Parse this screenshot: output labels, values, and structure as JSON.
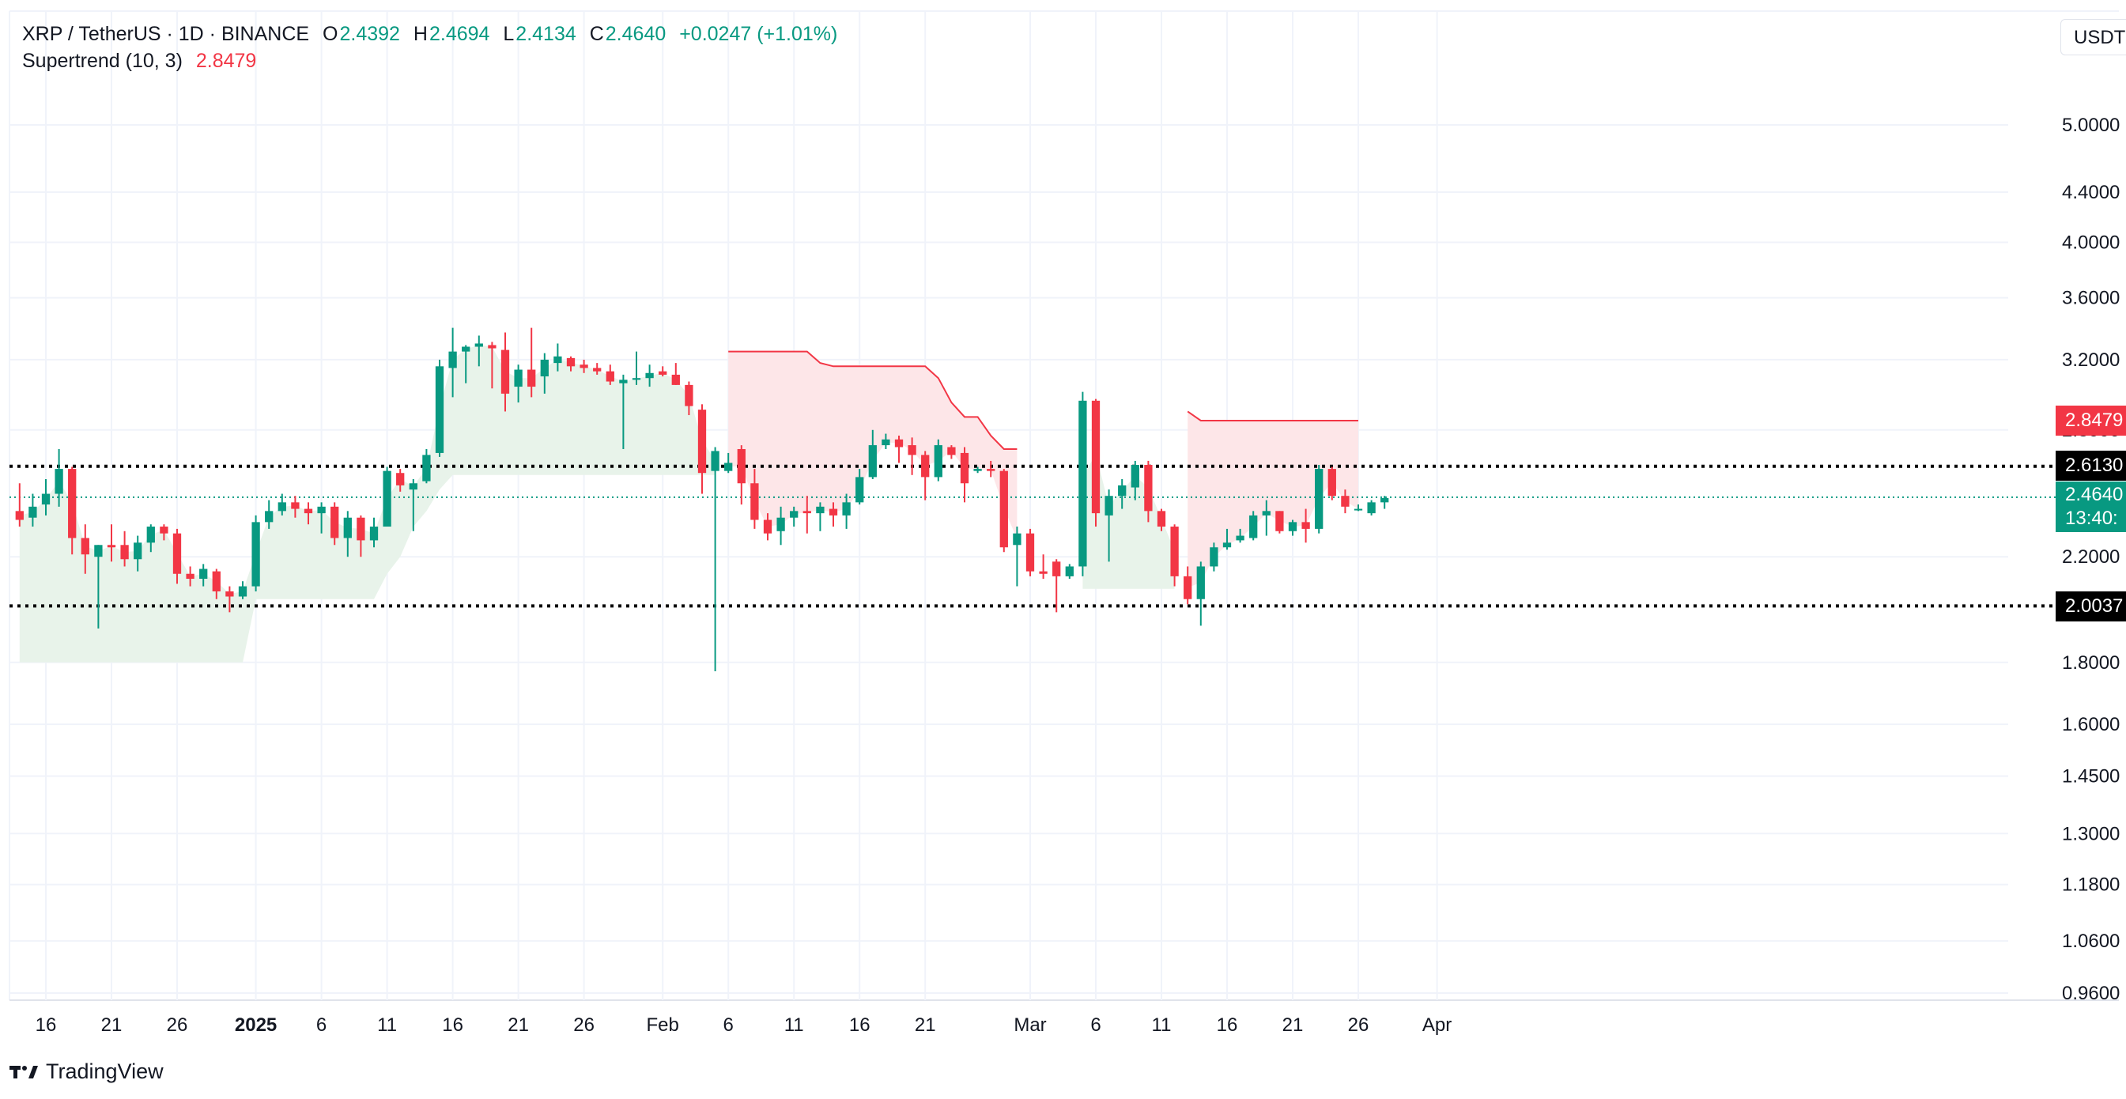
{
  "header": {
    "symbol": "XRP / TetherUS · 1D · BINANCE",
    "open_label": "O",
    "open": "2.4392",
    "high_label": "H",
    "high": "2.4694",
    "low_label": "L",
    "low": "2.4134",
    "close_label": "C",
    "close": "2.4640",
    "change": "+0.0247 (+1.01%)",
    "indicator_name": "Supertrend (10, 3)",
    "indicator_value": "2.8479"
  },
  "currency": "USDT",
  "price_labels": {
    "supertrend": "2.8479",
    "level_high": "2.6130",
    "last_price": "2.4640",
    "countdown": "13:40:",
    "level_low": "2.0037"
  },
  "brand": "TradingView",
  "colors": {
    "up": "#089981",
    "down": "#f23645",
    "up_fill": "#e8f3ea",
    "down_fill": "#fde6e8",
    "grid": "#f0f3fa"
  },
  "chart_data": {
    "type": "candlestick",
    "scale": "log",
    "y_ticks": [
      "5.0000",
      "4.4000",
      "4.0000",
      "3.6000",
      "3.2000",
      "2.8000",
      "2.2000",
      "1.8000",
      "1.6000",
      "1.4500",
      "1.3000",
      "1.1800",
      "1.0600",
      "0.9600"
    ],
    "x_ticks": [
      {
        "date": "2024-12-16",
        "label": "16"
      },
      {
        "date": "2024-12-21",
        "label": "21"
      },
      {
        "date": "2024-12-26",
        "label": "26"
      },
      {
        "date": "2025-01-01",
        "label": "2025",
        "bold": true
      },
      {
        "date": "2025-01-06",
        "label": "6"
      },
      {
        "date": "2025-01-11",
        "label": "11"
      },
      {
        "date": "2025-01-16",
        "label": "16"
      },
      {
        "date": "2025-01-21",
        "label": "21"
      },
      {
        "date": "2025-01-26",
        "label": "26"
      },
      {
        "date": "2025-02-01",
        "label": "Feb"
      },
      {
        "date": "2025-02-06",
        "label": "6"
      },
      {
        "date": "2025-02-11",
        "label": "11"
      },
      {
        "date": "2025-02-16",
        "label": "16"
      },
      {
        "date": "2025-02-21",
        "label": "21"
      },
      {
        "date": "2025-03-01",
        "label": "Mar"
      },
      {
        "date": "2025-03-06",
        "label": "6"
      },
      {
        "date": "2025-03-11",
        "label": "11"
      },
      {
        "date": "2025-03-16",
        "label": "16"
      },
      {
        "date": "2025-03-21",
        "label": "21"
      },
      {
        "date": "2025-03-26",
        "label": "26"
      },
      {
        "date": "2025-04-01",
        "label": "Apr"
      }
    ],
    "horizontal_levels": [
      2.613,
      2.0037
    ],
    "last_price": 2.464,
    "candles": [
      {
        "date": "2024-12-14",
        "o": 2.4,
        "h": 2.53,
        "l": 2.33,
        "c": 2.36
      },
      {
        "date": "2024-12-15",
        "o": 2.37,
        "h": 2.48,
        "l": 2.33,
        "c": 2.42
      },
      {
        "date": "2024-12-16",
        "o": 2.43,
        "h": 2.55,
        "l": 2.38,
        "c": 2.48
      },
      {
        "date": "2024-12-17",
        "o": 2.48,
        "h": 2.7,
        "l": 2.42,
        "c": 2.6
      },
      {
        "date": "2024-12-18",
        "o": 2.6,
        "h": 2.61,
        "l": 2.21,
        "c": 2.28
      },
      {
        "date": "2024-12-19",
        "o": 2.28,
        "h": 2.34,
        "l": 2.13,
        "c": 2.21
      },
      {
        "date": "2024-12-20",
        "o": 2.2,
        "h": 2.25,
        "l": 1.92,
        "c": 2.25
      },
      {
        "date": "2024-12-21",
        "o": 2.25,
        "h": 2.34,
        "l": 2.18,
        "c": 2.24
      },
      {
        "date": "2024-12-22",
        "o": 2.25,
        "h": 2.31,
        "l": 2.16,
        "c": 2.19
      },
      {
        "date": "2024-12-23",
        "o": 2.19,
        "h": 2.29,
        "l": 2.14,
        "c": 2.26
      },
      {
        "date": "2024-12-24",
        "o": 2.26,
        "h": 2.34,
        "l": 2.22,
        "c": 2.33
      },
      {
        "date": "2024-12-25",
        "o": 2.33,
        "h": 2.34,
        "l": 2.27,
        "c": 2.3
      },
      {
        "date": "2024-12-26",
        "o": 2.3,
        "h": 2.32,
        "l": 2.09,
        "c": 2.13
      },
      {
        "date": "2024-12-27",
        "o": 2.13,
        "h": 2.16,
        "l": 2.08,
        "c": 2.11
      },
      {
        "date": "2024-12-28",
        "o": 2.11,
        "h": 2.17,
        "l": 2.08,
        "c": 2.15
      },
      {
        "date": "2024-12-29",
        "o": 2.14,
        "h": 2.15,
        "l": 2.03,
        "c": 2.06
      },
      {
        "date": "2024-12-30",
        "o": 2.06,
        "h": 2.08,
        "l": 1.98,
        "c": 2.04
      },
      {
        "date": "2024-12-31",
        "o": 2.04,
        "h": 2.1,
        "l": 2.03,
        "c": 2.08
      },
      {
        "date": "2025-01-01",
        "o": 2.08,
        "h": 2.38,
        "l": 2.06,
        "c": 2.35
      },
      {
        "date": "2025-01-02",
        "o": 2.35,
        "h": 2.45,
        "l": 2.32,
        "c": 2.4
      },
      {
        "date": "2025-01-03",
        "o": 2.4,
        "h": 2.48,
        "l": 2.38,
        "c": 2.44
      },
      {
        "date": "2025-01-04",
        "o": 2.44,
        "h": 2.47,
        "l": 2.37,
        "c": 2.41
      },
      {
        "date": "2025-01-05",
        "o": 2.41,
        "h": 2.44,
        "l": 2.34,
        "c": 2.39
      },
      {
        "date": "2025-01-06",
        "o": 2.39,
        "h": 2.44,
        "l": 2.3,
        "c": 2.42
      },
      {
        "date": "2025-01-07",
        "o": 2.42,
        "h": 2.44,
        "l": 2.25,
        "c": 2.28
      },
      {
        "date": "2025-01-08",
        "o": 2.28,
        "h": 2.4,
        "l": 2.2,
        "c": 2.37
      },
      {
        "date": "2025-01-09",
        "o": 2.37,
        "h": 2.38,
        "l": 2.2,
        "c": 2.27
      },
      {
        "date": "2025-01-10",
        "o": 2.27,
        "h": 2.37,
        "l": 2.24,
        "c": 2.33
      },
      {
        "date": "2025-01-11",
        "o": 2.33,
        "h": 2.61,
        "l": 2.33,
        "c": 2.59
      },
      {
        "date": "2025-01-12",
        "o": 2.58,
        "h": 2.6,
        "l": 2.49,
        "c": 2.52
      },
      {
        "date": "2025-01-13",
        "o": 2.5,
        "h": 2.55,
        "l": 2.31,
        "c": 2.53
      },
      {
        "date": "2025-01-14",
        "o": 2.54,
        "h": 2.7,
        "l": 2.53,
        "c": 2.67
      },
      {
        "date": "2025-01-15",
        "o": 2.68,
        "h": 3.2,
        "l": 2.66,
        "c": 3.16
      },
      {
        "date": "2025-01-16",
        "o": 3.15,
        "h": 3.4,
        "l": 2.98,
        "c": 3.25
      },
      {
        "date": "2025-01-17",
        "o": 3.25,
        "h": 3.29,
        "l": 3.06,
        "c": 3.28
      },
      {
        "date": "2025-01-18",
        "o": 3.28,
        "h": 3.35,
        "l": 3.16,
        "c": 3.3
      },
      {
        "date": "2025-01-19",
        "o": 3.29,
        "h": 3.31,
        "l": 3.03,
        "c": 3.27
      },
      {
        "date": "2025-01-20",
        "o": 3.26,
        "h": 3.37,
        "l": 2.9,
        "c": 3.0
      },
      {
        "date": "2025-01-21",
        "o": 3.04,
        "h": 3.17,
        "l": 2.95,
        "c": 3.14
      },
      {
        "date": "2025-01-22",
        "o": 3.14,
        "h": 3.4,
        "l": 2.98,
        "c": 3.04
      },
      {
        "date": "2025-01-23",
        "o": 3.1,
        "h": 3.24,
        "l": 3.0,
        "c": 3.2
      },
      {
        "date": "2025-01-24",
        "o": 3.18,
        "h": 3.3,
        "l": 3.13,
        "c": 3.22
      },
      {
        "date": "2025-01-25",
        "o": 3.21,
        "h": 3.22,
        "l": 3.13,
        "c": 3.16
      },
      {
        "date": "2025-01-26",
        "o": 3.17,
        "h": 3.2,
        "l": 3.12,
        "c": 3.15
      },
      {
        "date": "2025-01-27",
        "o": 3.15,
        "h": 3.18,
        "l": 3.11,
        "c": 3.13
      },
      {
        "date": "2025-01-28",
        "o": 3.13,
        "h": 3.17,
        "l": 3.05,
        "c": 3.07
      },
      {
        "date": "2025-01-29",
        "o": 3.06,
        "h": 3.11,
        "l": 2.7,
        "c": 3.08
      },
      {
        "date": "2025-01-30",
        "o": 3.08,
        "h": 3.25,
        "l": 3.05,
        "c": 3.09
      },
      {
        "date": "2025-01-31",
        "o": 3.09,
        "h": 3.17,
        "l": 3.04,
        "c": 3.12
      },
      {
        "date": "2025-02-01",
        "o": 3.13,
        "h": 3.16,
        "l": 3.1,
        "c": 3.11
      },
      {
        "date": "2025-02-02",
        "o": 3.11,
        "h": 3.18,
        "l": 3.05,
        "c": 3.05
      },
      {
        "date": "2025-02-03",
        "o": 3.05,
        "h": 3.07,
        "l": 2.88,
        "c": 2.93
      },
      {
        "date": "2025-02-04",
        "o": 2.91,
        "h": 2.94,
        "l": 2.48,
        "c": 2.58
      },
      {
        "date": "2025-02-05",
        "o": 2.59,
        "h": 2.71,
        "l": 1.77,
        "c": 2.69
      },
      {
        "date": "2025-02-06",
        "o": 2.59,
        "h": 2.68,
        "l": 2.58,
        "c": 2.63
      },
      {
        "date": "2025-02-07",
        "o": 2.7,
        "h": 2.72,
        "l": 2.43,
        "c": 2.53
      },
      {
        "date": "2025-02-08",
        "o": 2.53,
        "h": 2.6,
        "l": 2.32,
        "c": 2.36
      },
      {
        "date": "2025-02-09",
        "o": 2.36,
        "h": 2.39,
        "l": 2.27,
        "c": 2.3
      },
      {
        "date": "2025-02-10",
        "o": 2.31,
        "h": 2.42,
        "l": 2.25,
        "c": 2.37
      },
      {
        "date": "2025-02-11",
        "o": 2.37,
        "h": 2.42,
        "l": 2.33,
        "c": 2.4
      },
      {
        "date": "2025-02-12",
        "o": 2.4,
        "h": 2.47,
        "l": 2.3,
        "c": 2.39
      },
      {
        "date": "2025-02-13",
        "o": 2.39,
        "h": 2.44,
        "l": 2.31,
        "c": 2.42
      },
      {
        "date": "2025-02-14",
        "o": 2.41,
        "h": 2.44,
        "l": 2.33,
        "c": 2.38
      },
      {
        "date": "2025-02-15",
        "o": 2.38,
        "h": 2.48,
        "l": 2.32,
        "c": 2.44
      },
      {
        "date": "2025-02-16",
        "o": 2.44,
        "h": 2.6,
        "l": 2.43,
        "c": 2.56
      },
      {
        "date": "2025-02-17",
        "o": 2.56,
        "h": 2.8,
        "l": 2.55,
        "c": 2.72
      },
      {
        "date": "2025-02-18",
        "o": 2.72,
        "h": 2.78,
        "l": 2.7,
        "c": 2.75
      },
      {
        "date": "2025-02-19",
        "o": 2.75,
        "h": 2.77,
        "l": 2.63,
        "c": 2.71
      },
      {
        "date": "2025-02-20",
        "o": 2.72,
        "h": 2.76,
        "l": 2.57,
        "c": 2.67
      },
      {
        "date": "2025-02-21",
        "o": 2.67,
        "h": 2.69,
        "l": 2.45,
        "c": 2.56
      },
      {
        "date": "2025-02-22",
        "o": 2.56,
        "h": 2.75,
        "l": 2.54,
        "c": 2.72
      },
      {
        "date": "2025-02-23",
        "o": 2.71,
        "h": 2.72,
        "l": 2.65,
        "c": 2.67
      },
      {
        "date": "2025-02-24",
        "o": 2.68,
        "h": 2.71,
        "l": 2.44,
        "c": 2.53
      },
      {
        "date": "2025-02-25",
        "o": 2.59,
        "h": 2.61,
        "l": 2.58,
        "c": 2.6
      },
      {
        "date": "2025-02-26",
        "o": 2.6,
        "h": 2.64,
        "l": 2.56,
        "c": 2.59
      },
      {
        "date": "2025-02-27",
        "o": 2.59,
        "h": 2.6,
        "l": 2.22,
        "c": 2.24
      },
      {
        "date": "2025-02-28",
        "o": 2.25,
        "h": 2.33,
        "l": 2.08,
        "c": 2.3
      },
      {
        "date": "2025-03-01",
        "o": 2.3,
        "h": 2.32,
        "l": 2.12,
        "c": 2.14
      },
      {
        "date": "2025-03-02",
        "o": 2.14,
        "h": 2.21,
        "l": 2.11,
        "c": 2.13
      },
      {
        "date": "2025-03-03",
        "o": 2.18,
        "h": 2.19,
        "l": 1.98,
        "c": 2.12
      },
      {
        "date": "2025-03-04",
        "o": 2.12,
        "h": 2.17,
        "l": 2.11,
        "c": 2.16
      },
      {
        "date": "2025-03-05",
        "o": 2.16,
        "h": 3.01,
        "l": 2.12,
        "c": 2.96
      },
      {
        "date": "2025-03-06",
        "o": 2.96,
        "h": 2.97,
        "l": 2.33,
        "c": 2.39
      },
      {
        "date": "2025-03-07",
        "o": 2.38,
        "h": 2.5,
        "l": 2.18,
        "c": 2.47
      },
      {
        "date": "2025-03-08",
        "o": 2.47,
        "h": 2.55,
        "l": 2.41,
        "c": 2.52
      },
      {
        "date": "2025-03-09",
        "o": 2.51,
        "h": 2.64,
        "l": 2.45,
        "c": 2.62
      },
      {
        "date": "2025-03-10",
        "o": 2.62,
        "h": 2.64,
        "l": 2.35,
        "c": 2.4
      },
      {
        "date": "2025-03-11",
        "o": 2.4,
        "h": 2.41,
        "l": 2.31,
        "c": 2.33
      },
      {
        "date": "2025-03-12",
        "o": 2.33,
        "h": 2.34,
        "l": 2.08,
        "c": 2.12
      },
      {
        "date": "2025-03-13",
        "o": 2.12,
        "h": 2.16,
        "l": 2.01,
        "c": 2.03
      },
      {
        "date": "2025-03-14",
        "o": 2.03,
        "h": 2.18,
        "l": 1.93,
        "c": 2.16
      },
      {
        "date": "2025-03-15",
        "o": 2.16,
        "h": 2.26,
        "l": 2.14,
        "c": 2.24
      },
      {
        "date": "2025-03-16",
        "o": 2.24,
        "h": 2.32,
        "l": 2.23,
        "c": 2.26
      },
      {
        "date": "2025-03-17",
        "o": 2.27,
        "h": 2.32,
        "l": 2.26,
        "c": 2.29
      },
      {
        "date": "2025-03-18",
        "o": 2.28,
        "h": 2.4,
        "l": 2.27,
        "c": 2.38
      },
      {
        "date": "2025-03-19",
        "o": 2.38,
        "h": 2.45,
        "l": 2.29,
        "c": 2.4
      },
      {
        "date": "2025-03-20",
        "o": 2.4,
        "h": 2.4,
        "l": 2.3,
        "c": 2.31
      },
      {
        "date": "2025-03-21",
        "o": 2.31,
        "h": 2.36,
        "l": 2.29,
        "c": 2.35
      },
      {
        "date": "2025-03-22",
        "o": 2.35,
        "h": 2.41,
        "l": 2.26,
        "c": 2.32
      },
      {
        "date": "2025-03-23",
        "o": 2.32,
        "h": 2.62,
        "l": 2.3,
        "c": 2.6
      },
      {
        "date": "2025-03-24",
        "o": 2.6,
        "h": 2.61,
        "l": 2.45,
        "c": 2.47
      },
      {
        "date": "2025-03-25",
        "o": 2.47,
        "h": 2.5,
        "l": 2.39,
        "c": 2.42
      },
      {
        "date": "2025-03-26",
        "o": 2.41,
        "h": 2.43,
        "l": 2.4,
        "c": 2.41
      },
      {
        "date": "2025-03-27",
        "o": 2.39,
        "h": 2.45,
        "l": 2.38,
        "c": 2.44
      },
      {
        "date": "2025-03-28",
        "o": 2.44,
        "h": 2.47,
        "l": 2.41,
        "c": 2.46
      }
    ],
    "supertrend": [
      {
        "from": "2024-12-14",
        "to": "2024-12-31",
        "trend": "up",
        "value": 1.8
      },
      {
        "from": "2025-01-01",
        "to": "2025-01-10",
        "trend": "up",
        "value": 2.03
      },
      {
        "from": "2025-01-11",
        "to": "2025-01-11",
        "trend": "up",
        "value": 2.13
      },
      {
        "from": "2025-01-12",
        "to": "2025-01-12",
        "trend": "up",
        "value": 2.2
      },
      {
        "from": "2025-01-13",
        "to": "2025-01-13",
        "trend": "up",
        "value": 2.33
      },
      {
        "from": "2025-01-14",
        "to": "2025-01-14",
        "trend": "up",
        "value": 2.4
      },
      {
        "from": "2025-01-15",
        "to": "2025-01-15",
        "trend": "up",
        "value": 2.5
      },
      {
        "from": "2025-01-16",
        "to": "2025-02-05",
        "trend": "up",
        "value": 2.57
      },
      {
        "from": "2025-02-06",
        "to": "2025-02-12",
        "trend": "down",
        "value": 3.25
      },
      {
        "from": "2025-02-13",
        "to": "2025-02-13",
        "trend": "down",
        "value": 3.18
      },
      {
        "from": "2025-02-14",
        "to": "2025-02-21",
        "trend": "down",
        "value": 3.16
      },
      {
        "from": "2025-02-22",
        "to": "2025-02-22",
        "trend": "down",
        "value": 3.09
      },
      {
        "from": "2025-02-23",
        "to": "2025-02-23",
        "trend": "down",
        "value": 2.95
      },
      {
        "from": "2025-02-24",
        "to": "2025-02-25",
        "trend": "down",
        "value": 2.87
      },
      {
        "from": "2025-02-26",
        "to": "2025-02-26",
        "trend": "down",
        "value": 2.77
      },
      {
        "from": "2025-02-27",
        "to": "2025-02-28",
        "trend": "down",
        "value": 2.7
      },
      {
        "from": "2025-03-05",
        "to": "2025-03-12",
        "trend": "up",
        "value": 2.07
      },
      {
        "from": "2025-03-13",
        "to": "2025-03-13",
        "trend": "down",
        "value": 2.9
      },
      {
        "from": "2025-03-14",
        "to": "2025-03-26",
        "trend": "down",
        "value": 2.85
      }
    ]
  }
}
